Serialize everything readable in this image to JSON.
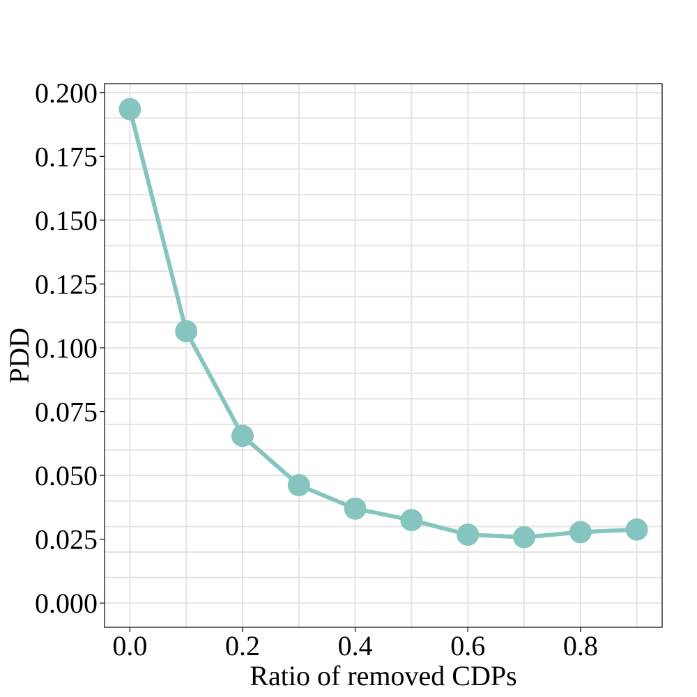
{
  "chart_data": {
    "type": "line",
    "title": "",
    "xlabel": "Ratio of removed CDPs",
    "ylabel": "PDD",
    "xlim": [
      -0.045,
      0.945
    ],
    "ylim": [
      -0.0095,
      0.2035
    ],
    "xticks": [
      0.0,
      0.2,
      0.4,
      0.6,
      0.8
    ],
    "xtick_labels": [
      "0.0",
      "0.2",
      "0.4",
      "0.6",
      "0.8"
    ],
    "yticks": [
      0.0,
      0.025,
      0.05,
      0.075,
      0.1,
      0.125,
      0.15,
      0.175,
      0.2
    ],
    "ytick_labels": [
      "0.000",
      "0.025",
      "0.050",
      "0.075",
      "0.100",
      "0.125",
      "0.150",
      "0.175",
      "0.200"
    ],
    "x_gridlines": [
      0.0,
      0.1,
      0.2,
      0.3,
      0.4,
      0.5,
      0.6,
      0.7,
      0.8,
      0.9
    ],
    "y_gridlines": [
      0.0,
      0.01,
      0.02,
      0.03,
      0.04,
      0.05,
      0.06,
      0.07,
      0.08,
      0.09,
      0.1,
      0.11,
      0.12,
      0.13,
      0.14,
      0.15,
      0.16,
      0.17,
      0.18,
      0.19,
      0.2
    ],
    "grid": true,
    "legend": "none",
    "series": [
      {
        "color": "#86c5bf",
        "marker": "circle",
        "x": [
          0.0,
          0.1,
          0.2,
          0.3,
          0.4,
          0.5,
          0.6,
          0.7,
          0.8,
          0.9
        ],
        "values": [
          0.1935,
          0.1065,
          0.0655,
          0.0462,
          0.037,
          0.0325,
          0.0268,
          0.0258,
          0.0278,
          0.0288
        ]
      }
    ]
  }
}
